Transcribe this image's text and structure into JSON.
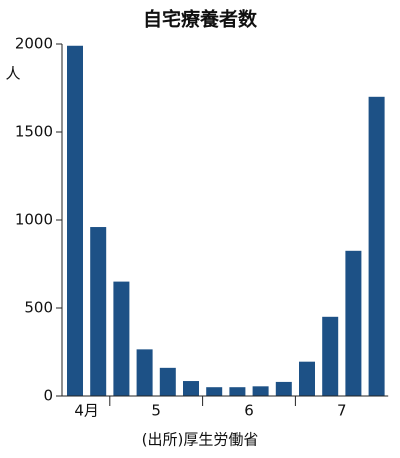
{
  "chart_data": {
    "type": "bar",
    "title": "自宅療養者数",
    "y_unit": "人",
    "categories": [
      "4月",
      null,
      "5",
      null,
      null,
      null,
      "6",
      null,
      null,
      null,
      "7",
      null,
      null,
      null
    ],
    "values": [
      1990,
      960,
      650,
      265,
      160,
      85,
      50,
      50,
      55,
      80,
      195,
      450,
      825,
      1700
    ],
    "color": "#1d5186",
    "ylim": [
      0,
      2000
    ],
    "yticks": [
      0,
      500,
      1000,
      1500,
      2000
    ],
    "source": "(出所)厚生労働省"
  }
}
